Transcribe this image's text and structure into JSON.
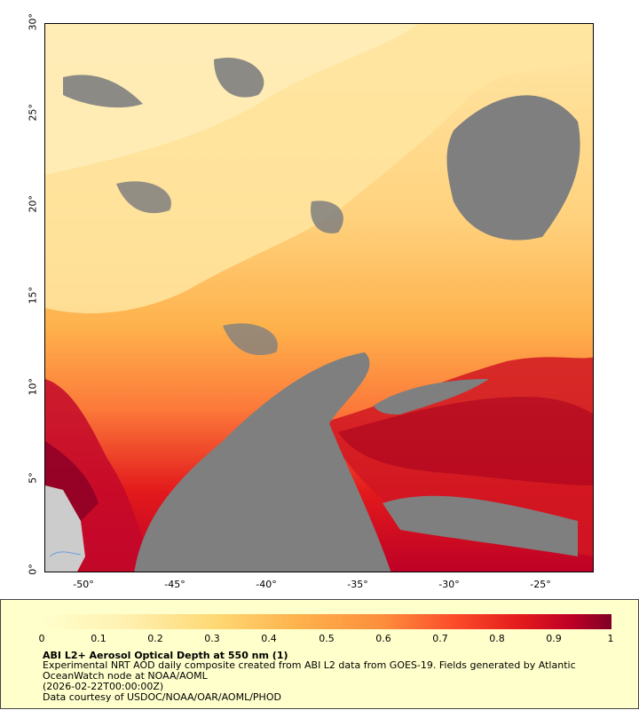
{
  "map": {
    "lat_labels": [
      "0°",
      "5°",
      "10°",
      "15°",
      "20°",
      "25°",
      "30°"
    ],
    "lon_labels": [
      "-50°",
      "-45°",
      "-40°",
      "-35°",
      "-30°",
      "-25°"
    ],
    "missing_color": "#7f7f7f",
    "land_color": "#cccccc"
  },
  "legend": {
    "ticks": [
      "0",
      "0.1",
      "0.2",
      "0.3",
      "0.4",
      "0.5",
      "0.6",
      "0.7",
      "0.8",
      "0.9",
      "1"
    ],
    "colors": [
      "#ffffcc",
      "#fff0b0",
      "#ffe08c",
      "#fec961",
      "#feb24c",
      "#fd8d3c",
      "#fc4e2a",
      "#e31a1c",
      "#bd0026",
      "#800026"
    ],
    "title": "ABI L2+ Aerosol Optical Depth at 550 nm (1)",
    "line1": "Experimental NRT AOD daily composite created from ABI L2 data from GOES-19. Fields generated by Atlantic OceanWatch node at NOAA/AOML",
    "line2": "(2026-02-22T00:00:00Z)",
    "line3": "Data courtesy of USDOC/NOAA/OAR/AOML/PHOD"
  }
}
